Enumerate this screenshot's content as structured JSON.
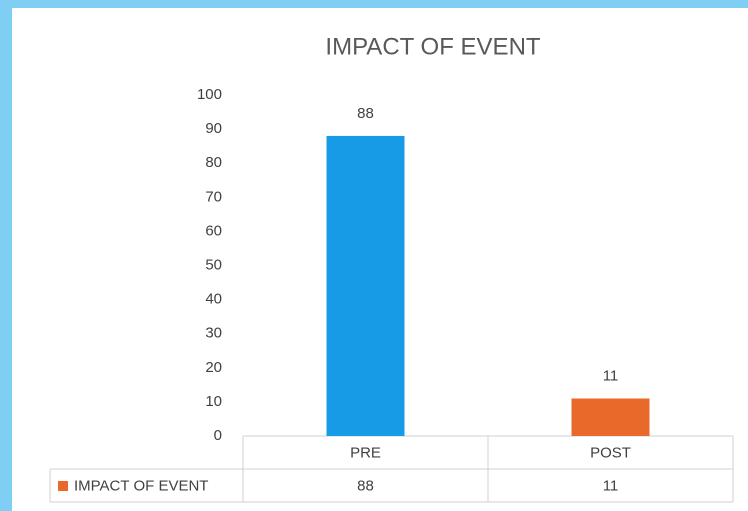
{
  "chart_data": {
    "type": "bar",
    "title": "IMPACT OF EVENT",
    "categories": [
      "PRE",
      "POST"
    ],
    "series": [
      {
        "name": "IMPACT OF EVENT",
        "color": "#e8692a",
        "point_colors": [
          "#189be6",
          "#e8692a"
        ],
        "values": [
          88,
          11
        ]
      }
    ],
    "ylim": [
      0,
      100
    ],
    "yticks": [
      0,
      10,
      20,
      30,
      40,
      50,
      60,
      70,
      80,
      90,
      100
    ],
    "grid": false,
    "data_labels": true,
    "data_table": true
  }
}
